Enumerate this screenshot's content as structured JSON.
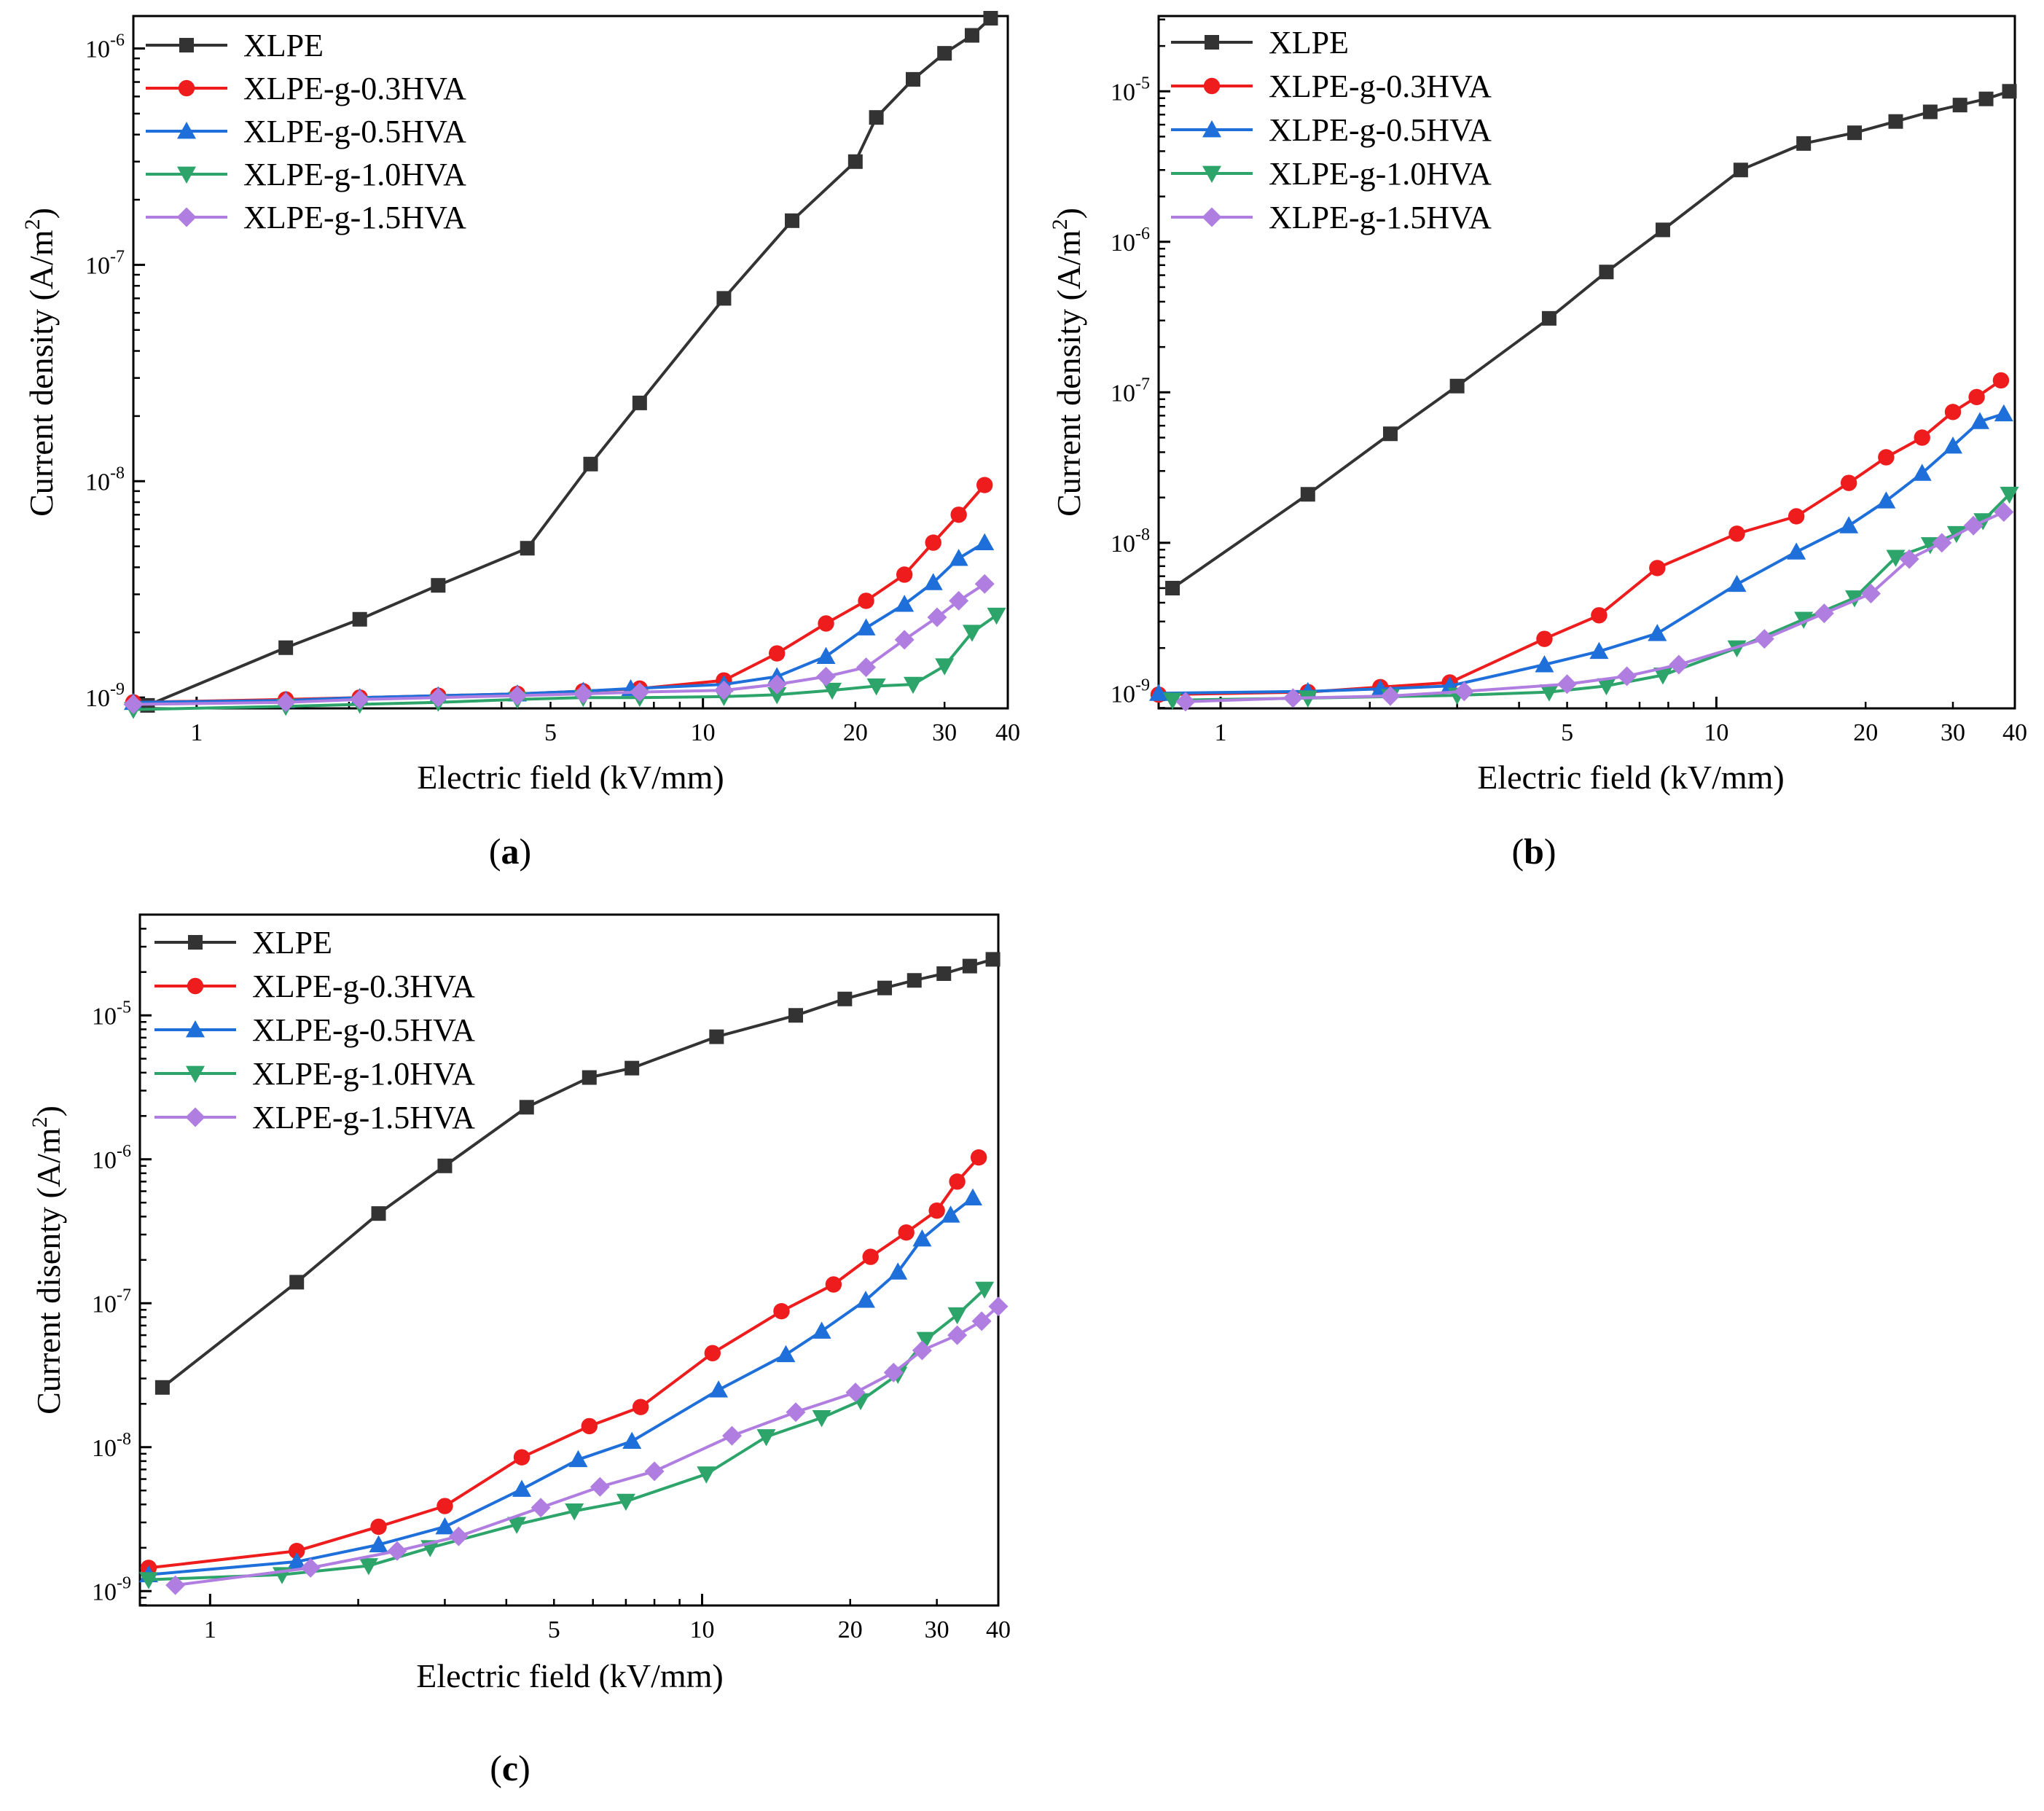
{
  "figure": {
    "series_colors": {
      "XLPE": "#333333",
      "XLPE-g-0.3HVA": "#ee1c1c",
      "XLPE-g-0.5HVA": "#1e6fd9",
      "XLPE-g-1.0HVA": "#2ca46a",
      "XLPE-g-1.5HVA": "#b07ee0"
    },
    "markers": {
      "XLPE": "square",
      "XLPE-g-0.3HVA": "circle",
      "XLPE-g-0.5HVA": "triangle-up",
      "XLPE-g-1.0HVA": "triangle-down",
      "XLPE-g-1.5HVA": "diamond"
    }
  },
  "chart_data": [
    {
      "type": "line",
      "panel_label": "(a)",
      "panel_letter": "a",
      "xlabel": "Electric field (kV/mm)",
      "ylabel_main": "Current density (A/m",
      "ylabel_sup": "2",
      "ylabel_end": ")",
      "xscale": "log",
      "yscale": "log",
      "xlim": [
        0.75,
        40
      ],
      "ylim_exp": [
        -9.05,
        -5.85
      ],
      "x_ticks": [
        1,
        5,
        10,
        20,
        30,
        40
      ],
      "x_tick_labels": [
        "1",
        "5",
        "10",
        "20",
        "30",
        "40"
      ],
      "y_tick_exps": [
        -9,
        -8,
        -7,
        -6
      ],
      "y_tick_base": "10",
      "y_tick_sups": [
        "-9",
        "-8",
        "-7",
        "-6"
      ],
      "legend_position": "top-left",
      "series": [
        {
          "name": "XLPE",
          "x": [
            0.8,
            1.5,
            2.1,
            3,
            4.5,
            6,
            7.5,
            11,
            15,
            20,
            22,
            26,
            30,
            34,
            37
          ],
          "y": [
            9.2e-10,
            1.7e-09,
            2.3e-09,
            3.3e-09,
            4.9e-09,
            1.2e-08,
            2.3e-08,
            7e-08,
            1.6e-07,
            3e-07,
            4.8e-07,
            7.2e-07,
            9.5e-07,
            1.15e-06,
            1.38e-06
          ]
        },
        {
          "name": "XLPE-g-0.3HVA",
          "x": [
            0.75,
            1.5,
            2.1,
            3,
            4.3,
            5.8,
            7.5,
            11,
            14,
            17.5,
            21,
            25,
            28.5,
            32,
            36
          ],
          "y": [
            9.5e-10,
            9.8e-10,
            1e-09,
            1.02e-09,
            1.04e-09,
            1.07e-09,
            1.1e-09,
            1.2e-09,
            1.6e-09,
            2.2e-09,
            2.8e-09,
            3.7e-09,
            5.2e-09,
            7e-09,
            9.6e-09
          ]
        },
        {
          "name": "XLPE-g-0.5HVA",
          "x": [
            0.75,
            1.5,
            2.1,
            3,
            4.3,
            5.8,
            7.2,
            11,
            14,
            17.5,
            21,
            25,
            28.5,
            32,
            36
          ],
          "y": [
            9.5e-10,
            9.7e-10,
            1e-09,
            1.02e-09,
            1.04e-09,
            1.07e-09,
            1.1e-09,
            1.15e-09,
            1.25e-09,
            1.55e-09,
            2.1e-09,
            2.7e-09,
            3.4e-09,
            4.4e-09,
            5.2e-09
          ]
        },
        {
          "name": "XLPE-g-1.0HVA",
          "x": [
            0.75,
            1.5,
            2.1,
            3,
            4.3,
            5.8,
            7.5,
            11,
            14,
            18,
            22,
            26,
            30,
            34,
            38
          ],
          "y": [
            8.8e-10,
            9.1e-10,
            9.3e-10,
            9.5e-10,
            9.8e-10,
            1e-09,
            1e-09,
            1.01e-09,
            1.03e-09,
            1.08e-09,
            1.13e-09,
            1.15e-09,
            1.4e-09,
            2e-09,
            2.4e-09
          ]
        },
        {
          "name": "XLPE-g-1.5HVA",
          "x": [
            0.75,
            1.5,
            2.1,
            3,
            4.3,
            5.8,
            7.5,
            11,
            14,
            17.5,
            21,
            25,
            29,
            32,
            36
          ],
          "y": [
            9.3e-10,
            9.5e-10,
            9.8e-10,
            1e-09,
            1.02e-09,
            1.04e-09,
            1.06e-09,
            1.08e-09,
            1.15e-09,
            1.25e-09,
            1.38e-09,
            1.85e-09,
            2.35e-09,
            2.8e-09,
            3.35e-09
          ]
        }
      ]
    },
    {
      "type": "line",
      "panel_label": "(b)",
      "panel_letter": "b",
      "xlabel": "Electric field (kV/mm)",
      "ylabel_main": "Current density (A/m",
      "ylabel_sup": "2",
      "ylabel_end": ")",
      "xscale": "log",
      "yscale": "log",
      "xlim": [
        0.75,
        40
      ],
      "ylim_exp": [
        -9.1,
        -4.5
      ],
      "x_ticks": [
        1,
        5,
        10,
        20,
        30,
        40
      ],
      "x_tick_labels": [
        "1",
        "5",
        "10",
        "20",
        "30",
        "40"
      ],
      "y_tick_exps": [
        -9,
        -8,
        -7,
        -6,
        -5
      ],
      "y_tick_base": "10",
      "y_tick_sups": [
        "-9",
        "-8",
        "-7",
        "-6",
        "-5"
      ],
      "legend_position": "top-left",
      "series": [
        {
          "name": "XLPE",
          "x": [
            0.8,
            1.5,
            2.2,
            3,
            4.6,
            6,
            7.8,
            11.2,
            15,
            19,
            23,
            27,
            31,
            35,
            39
          ],
          "y": [
            5e-09,
            2.1e-08,
            5.3e-08,
            1.1e-07,
            3.1e-07,
            6.3e-07,
            1.2e-06,
            3e-06,
            4.5e-06,
            5.3e-06,
            6.3e-06,
            7.3e-06,
            8.1e-06,
            8.9e-06,
            1e-05
          ]
        },
        {
          "name": "XLPE-g-0.3HVA",
          "x": [
            0.75,
            1.5,
            2.1,
            2.9,
            4.5,
            5.8,
            7.6,
            11,
            14.5,
            18.5,
            22,
            26,
            30,
            33.5,
            37.5
          ],
          "y": [
            9.8e-10,
            1.02e-09,
            1.1e-09,
            1.18e-09,
            2.3e-09,
            3.3e-09,
            6.8e-09,
            1.15e-08,
            1.5e-08,
            2.5e-08,
            3.7e-08,
            5e-08,
            7.4e-08,
            9.3e-08,
            1.2e-07
          ]
        },
        {
          "name": "XLPE-g-0.5HVA",
          "x": [
            0.75,
            1.5,
            2.1,
            2.9,
            4.5,
            5.8,
            7.6,
            11,
            14.5,
            18.5,
            22,
            26,
            30,
            34,
            38
          ],
          "y": [
            1e-09,
            1.03e-09,
            1.07e-09,
            1.12e-09,
            1.55e-09,
            1.9e-09,
            2.5e-09,
            5.3e-09,
            8.7e-09,
            1.3e-08,
            1.9e-08,
            2.9e-08,
            4.4e-08,
            6.4e-08,
            7.2e-08
          ]
        },
        {
          "name": "XLPE-g-1.0HVA",
          "x": [
            0.8,
            1.5,
            2.2,
            3,
            4.6,
            6,
            7.8,
            11,
            15,
            19,
            23,
            27,
            30.5,
            34.5,
            39
          ],
          "y": [
            9e-10,
            9.3e-10,
            9.5e-10,
            9.7e-10,
            1.02e-09,
            1.12e-09,
            1.32e-09,
            2e-09,
            3.1e-09,
            4.3e-09,
            8e-09,
            9.7e-09,
            1.15e-08,
            1.4e-08,
            2.1e-08
          ]
        },
        {
          "name": "XLPE-g-1.5HVA",
          "x": [
            0.85,
            1.4,
            2.2,
            3.1,
            5,
            6.6,
            8.4,
            12.5,
            16.5,
            20.5,
            24.5,
            28.5,
            33,
            38
          ],
          "y": [
            8.8e-10,
            9.3e-10,
            9.6e-10,
            1.03e-09,
            1.15e-09,
            1.3e-09,
            1.55e-09,
            2.3e-09,
            3.4e-09,
            4.6e-09,
            7.8e-09,
            1e-08,
            1.3e-08,
            1.6e-08
          ]
        }
      ]
    },
    {
      "type": "line",
      "panel_label": "(c)",
      "panel_letter": "c",
      "xlabel": "Electric field (kV/mm)",
      "ylabel_main": "Current disenty (A/m",
      "ylabel_sup": "2",
      "ylabel_end": ")",
      "xscale": "log",
      "yscale": "log",
      "xlim": [
        0.72,
        40
      ],
      "ylim_exp": [
        -9.1,
        -4.3
      ],
      "x_ticks": [
        1,
        5,
        10,
        20,
        30,
        40
      ],
      "x_tick_labels": [
        "1",
        "5",
        "10",
        "20",
        "30",
        "40"
      ],
      "y_tick_exps": [
        -9,
        -8,
        -7,
        -6,
        -5
      ],
      "y_tick_base": "10",
      "y_tick_sups": [
        "-9",
        "-8",
        "-7",
        "-6",
        "-5"
      ],
      "legend_position": "top-left",
      "series": [
        {
          "name": "XLPE",
          "x": [
            0.8,
            1.5,
            2.2,
            3,
            4.4,
            5.9,
            7.2,
            10.7,
            15.5,
            19.5,
            23.5,
            27,
            31,
            35,
            39
          ],
          "y": [
            2.6e-08,
            1.4e-07,
            4.2e-07,
            9e-07,
            2.3e-06,
            3.7e-06,
            4.3e-06,
            7.1e-06,
            1e-05,
            1.3e-05,
            1.55e-05,
            1.75e-05,
            1.95e-05,
            2.2e-05,
            2.45e-05
          ]
        },
        {
          "name": "XLPE-g-0.3HVA",
          "x": [
            0.75,
            1.5,
            2.2,
            3,
            4.3,
            5.9,
            7.5,
            10.5,
            14.5,
            18.5,
            22,
            26,
            30,
            33,
            36.5
          ],
          "y": [
            1.45e-09,
            1.9e-09,
            2.8e-09,
            3.9e-09,
            8.5e-09,
            1.4e-08,
            1.9e-08,
            4.5e-08,
            8.8e-08,
            1.35e-07,
            2.1e-07,
            3.1e-07,
            4.4e-07,
            7e-07,
            1.03e-06
          ]
        },
        {
          "name": "XLPE-g-0.5HVA",
          "x": [
            0.75,
            1.5,
            2.2,
            3,
            4.3,
            5.6,
            7.2,
            10.8,
            14.8,
            17.5,
            21.5,
            25,
            28,
            32,
            35.5
          ],
          "y": [
            1.3e-09,
            1.6e-09,
            2.1e-09,
            2.8e-09,
            5.1e-09,
            8.2e-09,
            1.1e-08,
            2.5e-08,
            4.4e-08,
            6.4e-08,
            1.05e-07,
            1.65e-07,
            2.8e-07,
            4.1e-07,
            5.4e-07
          ]
        },
        {
          "name": "XLPE-g-1.0HVA",
          "x": [
            0.75,
            1.4,
            2.1,
            2.8,
            4.2,
            5.5,
            7,
            10.2,
            13.5,
            17.5,
            21,
            25,
            28.5,
            33,
            37.5
          ],
          "y": [
            1.2e-09,
            1.3e-09,
            1.5e-09,
            2e-09,
            2.9e-09,
            3.6e-09,
            4.2e-09,
            6.5e-09,
            1.18e-08,
            1.6e-08,
            2.1e-08,
            3.2e-08,
            5.6e-08,
            8.3e-08,
            1.25e-07
          ]
        },
        {
          "name": "XLPE-g-1.5HVA",
          "x": [
            0.85,
            1.6,
            2.4,
            3.2,
            4.7,
            6.2,
            8,
            11.5,
            15.5,
            20.5,
            24.5,
            28,
            33,
            37,
            40
          ],
          "y": [
            1.1e-09,
            1.45e-09,
            1.9e-09,
            2.4e-09,
            3.8e-09,
            5.3e-09,
            6.8e-09,
            1.2e-08,
            1.75e-08,
            2.4e-08,
            3.3e-08,
            4.7e-08,
            6e-08,
            7.5e-08,
            9.5e-08
          ]
        }
      ]
    }
  ]
}
